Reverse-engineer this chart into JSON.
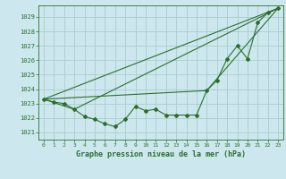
{
  "bg_color": "#cce8ee",
  "grid_color": "#aacccc",
  "line_color": "#2d6e2d",
  "title": "Graphe pression niveau de la mer (hPa)",
  "xlabel_ticks": [
    0,
    1,
    2,
    3,
    4,
    5,
    6,
    7,
    8,
    9,
    10,
    11,
    12,
    13,
    14,
    15,
    16,
    17,
    18,
    19,
    20,
    21,
    22,
    23
  ],
  "ylim": [
    1020.5,
    1029.8
  ],
  "yticks": [
    1021,
    1022,
    1023,
    1024,
    1025,
    1026,
    1027,
    1028,
    1029
  ],
  "series_main": {
    "x": [
      0,
      1,
      2,
      3,
      4,
      5,
      6,
      7,
      8,
      9,
      10,
      11,
      12,
      13,
      14,
      15,
      16,
      17,
      18,
      19,
      20,
      21,
      22,
      23
    ],
    "y": [
      1023.3,
      1023.1,
      1023.0,
      1022.6,
      1022.1,
      1021.9,
      1021.6,
      1021.4,
      1021.9,
      1022.8,
      1022.5,
      1022.6,
      1022.2,
      1022.2,
      1022.2,
      1022.2,
      1023.9,
      1024.6,
      1026.1,
      1027.0,
      1026.1,
      1028.6,
      1029.3,
      1029.6
    ]
  },
  "series_line1": {
    "x": [
      0,
      23
    ],
    "y": [
      1023.3,
      1029.6
    ]
  },
  "series_line2": {
    "x": [
      0,
      3,
      23
    ],
    "y": [
      1023.3,
      1022.6,
      1029.6
    ]
  },
  "series_line3": {
    "x": [
      0,
      16,
      23
    ],
    "y": [
      1023.3,
      1023.9,
      1029.6
    ]
  }
}
